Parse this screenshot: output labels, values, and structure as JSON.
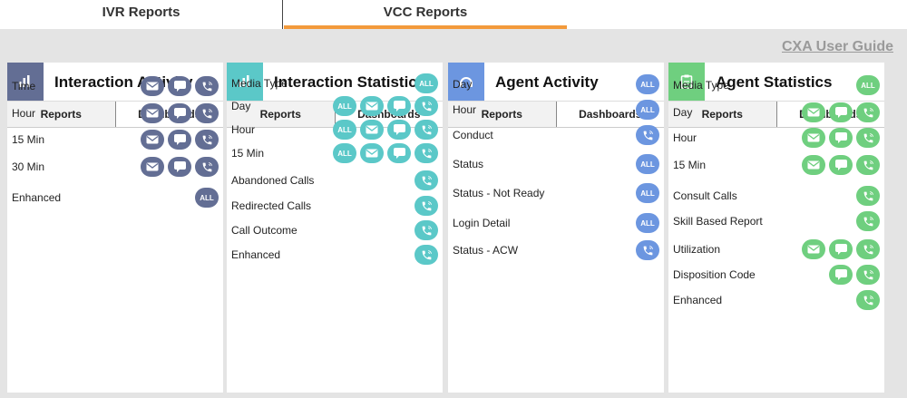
{
  "tabs": [
    {
      "label": "IVR Reports",
      "active": false
    },
    {
      "label": "VCC Reports",
      "active": true
    }
  ],
  "guide_link": "CXA User Guide",
  "subtabs": {
    "reports": "Reports",
    "dashboards": "Dashboards"
  },
  "all_label": "ALL",
  "cards": [
    {
      "title": "Interaction Activity",
      "color": "#636e94",
      "icon": "bar-chart-icon",
      "rows": [
        {
          "label": "Time",
          "buttons": [
            "email",
            "chat",
            "phone"
          ]
        },
        {
          "label": "Hour",
          "buttons": [
            "email",
            "chat",
            "phone"
          ]
        },
        {
          "label": "15 Min",
          "buttons": [
            "email",
            "chat",
            "phone"
          ]
        },
        {
          "label": "30 Min",
          "buttons": [
            "email",
            "chat",
            "phone"
          ]
        },
        {
          "label": "Enhanced",
          "buttons": [
            "all"
          ]
        }
      ]
    },
    {
      "title": "Interaction Statistics",
      "color": "#5bc8c8",
      "icon": "bar-chart-icon",
      "rows": [
        {
          "label": "Media Type",
          "buttons": [
            "all"
          ]
        },
        {
          "label": "Day",
          "buttons": [
            "all",
            "email",
            "chat",
            "phone"
          ]
        },
        {
          "label": "Hour",
          "buttons": [
            "all",
            "email",
            "chat",
            "phone"
          ]
        },
        {
          "label": "15 Min",
          "buttons": [
            "all",
            "email",
            "chat",
            "phone"
          ]
        },
        {
          "label": "Abandoned Calls",
          "buttons": [
            "phone"
          ]
        },
        {
          "label": "Redirected Calls",
          "buttons": [
            "phone"
          ]
        },
        {
          "label": "Call Outcome",
          "buttons": [
            "phone"
          ]
        },
        {
          "label": "Enhanced",
          "buttons": [
            "phone"
          ]
        }
      ]
    },
    {
      "title": "Agent Activity",
      "color": "#6c96e0",
      "icon": "headset-icon",
      "rows": [
        {
          "label": "Day",
          "buttons": [
            "all"
          ]
        },
        {
          "label": "Hour",
          "buttons": [
            "all"
          ]
        },
        {
          "label": "Conduct",
          "buttons": [
            "phone"
          ]
        },
        {
          "label": "Status",
          "buttons": [
            "all"
          ]
        },
        {
          "label": "Status - Not Ready",
          "buttons": [
            "all"
          ]
        },
        {
          "label": "Login Detail",
          "buttons": [
            "all"
          ]
        },
        {
          "label": "Status - ACW",
          "buttons": [
            "phone"
          ]
        }
      ]
    },
    {
      "title": "Agent Statistics",
      "color": "#6fcf7f",
      "icon": "clipboard-icon",
      "rows": [
        {
          "label": "Media Type",
          "buttons": [
            "all"
          ]
        },
        {
          "label": "Day",
          "buttons": [
            "email",
            "chat",
            "phone"
          ]
        },
        {
          "label": "Hour",
          "buttons": [
            "email",
            "chat",
            "phone"
          ]
        },
        {
          "label": "15 Min",
          "buttons": [
            "email",
            "chat",
            "phone"
          ]
        },
        {
          "label": "Consult Calls",
          "buttons": [
            "phone"
          ]
        },
        {
          "label": "Skill Based Report",
          "buttons": [
            "phone"
          ]
        },
        {
          "label": "Utilization",
          "buttons": [
            "email",
            "chat",
            "phone"
          ]
        },
        {
          "label": "Disposition Code",
          "buttons": [
            "chat",
            "phone"
          ]
        },
        {
          "label": "Enhanced",
          "buttons": [
            "phone"
          ]
        }
      ]
    }
  ]
}
